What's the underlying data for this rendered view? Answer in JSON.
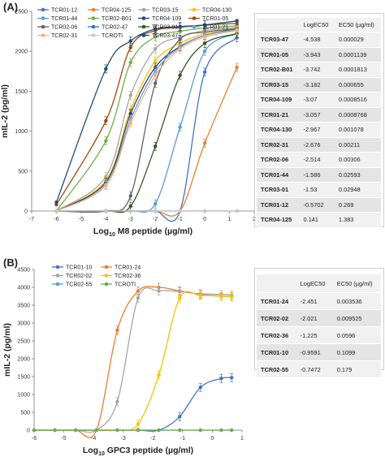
{
  "panels": {
    "a": {
      "letter": "(A)"
    },
    "b": {
      "letter": "(B)"
    }
  },
  "chart_data": [
    {
      "type": "line",
      "ylabel": "mIL-2 (pg/ml)",
      "xlabel_prefix": "Log",
      "xlabel_sub": "10",
      "xlabel_suffix": " M8 peptide (µg/ml)",
      "xlim": [
        -7,
        2
      ],
      "ylim": [
        0,
        2500
      ],
      "x_ticks": [
        "-7",
        "-6",
        "-5",
        "-4",
        "-3",
        "-2",
        "-1",
        "0",
        "1",
        "2"
      ],
      "y_ticks": [
        "0",
        "500",
        "1000",
        "1500",
        "2000",
        "2500"
      ],
      "x": [
        -6,
        -4,
        -3,
        -2,
        -1,
        0,
        1.3
      ],
      "legend_position": "top-left",
      "series": [
        {
          "name": "TCR01-12",
          "color": "#4472c4",
          "marker": "dot",
          "values": [
            0,
            0,
            0,
            0,
            0,
            1740,
            2170
          ]
        },
        {
          "name": "TCR04-125",
          "color": "#ed7d31",
          "marker": "dot",
          "values": [
            0,
            0,
            0,
            0,
            0,
            850,
            1800
          ]
        },
        {
          "name": "TCR03-15",
          "color": "#a5a5a5",
          "marker": "dot",
          "values": [
            0,
            430,
            1450,
            2030,
            2180,
            2260,
            2300
          ]
        },
        {
          "name": "TCR04-130",
          "color": "#ffc000",
          "marker": "dot",
          "values": [
            0,
            380,
            1270,
            1880,
            2100,
            2220,
            2290
          ]
        },
        {
          "name": "TCR01-44",
          "color": "#5b9bd5",
          "marker": "dot",
          "values": [
            0,
            0,
            0,
            90,
            1050,
            2000,
            2220
          ]
        },
        {
          "name": "TCR02-B01",
          "color": "#70ad47",
          "marker": "dot",
          "values": [
            0,
            880,
            1860,
            2180,
            2250,
            2290,
            2320
          ]
        },
        {
          "name": "TCR04-109",
          "color": "#264478",
          "marker": "dot",
          "values": [
            0,
            360,
            1220,
            1800,
            2060,
            2200,
            2280
          ]
        },
        {
          "name": "TCR01-05",
          "color": "#9e480e",
          "marker": "dot",
          "values": [
            80,
            1130,
            2050,
            2260,
            2300,
            2330,
            2350
          ]
        },
        {
          "name": "TCR02-06",
          "color": "#636363",
          "marker": "dot",
          "values": [
            0,
            0,
            190,
            1600,
            2150,
            2240,
            2280
          ]
        },
        {
          "name": "TCR02-47",
          "color": "#2e75b6",
          "marker": "dot",
          "values": [
            0,
            0,
            0,
            0,
            0,
            0,
            0
          ]
        },
        {
          "name": "TCR03-01",
          "color": "#375623",
          "marker": "dot",
          "values": [
            0,
            0,
            60,
            810,
            1700,
            2100,
            2220
          ]
        },
        {
          "name": "TCR01-21",
          "color": "#6f9fd8",
          "marker": "dot",
          "values": [
            0,
            330,
            1150,
            1750,
            2050,
            2200,
            2270
          ]
        },
        {
          "name": "TCR02-31",
          "color": "#f4b183",
          "marker": "dot",
          "values": [
            0,
            320,
            1100,
            1700,
            2030,
            2180,
            2260
          ]
        },
        {
          "name": "TCROTI",
          "color": "#c9c9c9",
          "marker": "dot",
          "values": [
            0,
            0,
            0,
            0,
            0,
            0,
            0
          ]
        },
        {
          "name": "TCR03-47",
          "color": "#1f4e79",
          "marker": "dot",
          "values": [
            110,
            1780,
            2130,
            2280,
            2310,
            2330,
            2380
          ]
        }
      ],
      "table": {
        "headers": [
          "",
          "LogEC50",
          "EC50 (µg/ml)"
        ],
        "rows": [
          [
            "TCR03-47",
            "-4.538",
            "0.000029"
          ],
          [
            "TCR01-05",
            "-3.943",
            "0.0001139"
          ],
          [
            "TCR02-B01",
            "-3.742",
            "0.0001813"
          ],
          [
            "TCR03-15",
            "-3.182",
            "0.000655"
          ],
          [
            "TCR04-109",
            "-3.07",
            "0.0008516"
          ],
          [
            "TCR01-21",
            "-3.057",
            "0.0008768"
          ],
          [
            "TCR04-130",
            "-2.967",
            "0.001078"
          ],
          [
            "TCR02-31",
            "-2.676",
            "0.00211"
          ],
          [
            "TCR02-06",
            "-2.514",
            "0.00306"
          ],
          [
            "TCR01-44",
            "-1.586",
            "0.02593"
          ],
          [
            "TCR03-01",
            "-1.53",
            "0.02948"
          ],
          [
            "TCR01-12",
            "-0.5702",
            "0.269"
          ],
          [
            "TCR04-125",
            "0.141",
            "1.383"
          ]
        ]
      }
    },
    {
      "type": "line",
      "ylabel": "mIL-2 (pg/ml)",
      "xlabel_prefix": "Log",
      "xlabel_sub": "10",
      "xlabel_suffix": " GPC3 peptide (µg/ml)",
      "xlim": [
        -6,
        1
      ],
      "ylim": [
        0,
        4500
      ],
      "x_ticks": [
        "-6",
        "-5",
        "-4",
        "-3",
        "-2",
        "-1",
        "0",
        "1"
      ],
      "y_ticks": [
        "0",
        "500",
        "1000",
        "1500",
        "2000",
        "2500",
        "3000",
        "3500",
        "4000",
        "4500"
      ],
      "x": [
        -6,
        -5.3,
        -4.6,
        -3.9,
        -3.2,
        -2.5,
        -1.8,
        -1.1,
        -0.4,
        0.3,
        0.65
      ],
      "legend_position": "top-left",
      "series": [
        {
          "name": "TCR01-10",
          "color": "#4472c4",
          "marker": "dot",
          "values": [
            0,
            0,
            0,
            0,
            0,
            0,
            0,
            380,
            1200,
            1450,
            1470
          ]
        },
        {
          "name": "TCR01-24",
          "color": "#ed7d31",
          "marker": "dot",
          "values": [
            0,
            0,
            0,
            0,
            2800,
            3900,
            4000,
            3900,
            3800,
            3750,
            3740
          ]
        },
        {
          "name": "TCR02-02",
          "color": "#a5a5a5",
          "marker": "dot",
          "values": [
            0,
            0,
            0,
            0,
            800,
            3700,
            3900,
            3880,
            3820,
            3800,
            3780
          ]
        },
        {
          "name": "TCR02-36",
          "color": "#ffc000",
          "marker": "dot",
          "values": [
            0,
            0,
            0,
            0,
            0,
            170,
            1550,
            3700,
            3770,
            3750,
            3740
          ]
        },
        {
          "name": "TCR02-55",
          "color": "#5b9bd5",
          "marker": "dot",
          "values": [
            0,
            0,
            0,
            0,
            0,
            0,
            0,
            0,
            0,
            0,
            0
          ]
        },
        {
          "name": "TCROTI",
          "color": "#70ad47",
          "marker": "dot",
          "values": [
            0,
            0,
            0,
            0,
            0,
            0,
            0,
            0,
            0,
            0,
            0
          ]
        }
      ],
      "table": {
        "headers": [
          "",
          "LogEC50",
          "EC50 (µg/ml)"
        ],
        "rows": [
          [
            "TCR01-24",
            "-2.451",
            "0.003536"
          ],
          [
            "TCR02-02",
            "-2.021",
            "0.009525"
          ],
          [
            "TCR02-36",
            "-1.225",
            "0.0596"
          ],
          [
            "TCR01-10",
            "-0.9591",
            "0.1099"
          ],
          [
            "TCR02-55",
            "-0.7472",
            "0.179"
          ]
        ]
      }
    }
  ]
}
